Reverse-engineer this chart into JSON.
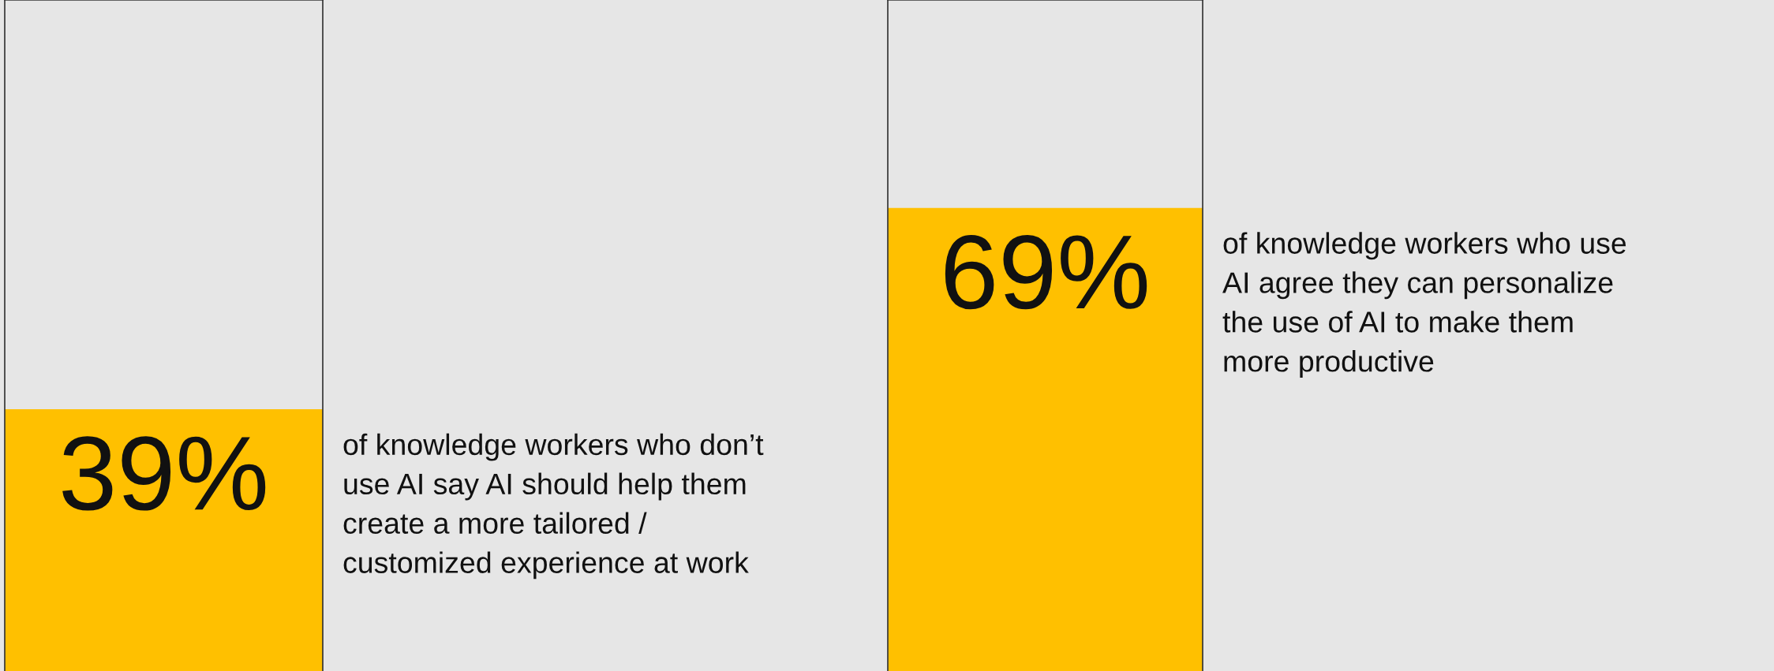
{
  "chart_data": [
    {
      "type": "bar",
      "categories": [
        null
      ],
      "values": [
        39
      ],
      "value_labels": [
        "39%"
      ],
      "color": "#ffc000",
      "ylim": [
        0,
        100
      ],
      "tick_labels": false,
      "annotations": [
        "of knowledge workers who don’t\nuse AI say AI should help them\ncreate a more tailored /\ncustomized experience at work"
      ]
    },
    {
      "type": "bar",
      "categories": [
        null
      ],
      "values": [
        69
      ],
      "value_labels": [
        "69%"
      ],
      "color": "#ffc000",
      "ylim": [
        0,
        100
      ],
      "tick_labels": false,
      "annotations": [
        "of knowledge workers who use\nAI agree they can personalize\nthe use of AI to make them\nmore productive"
      ]
    }
  ]
}
